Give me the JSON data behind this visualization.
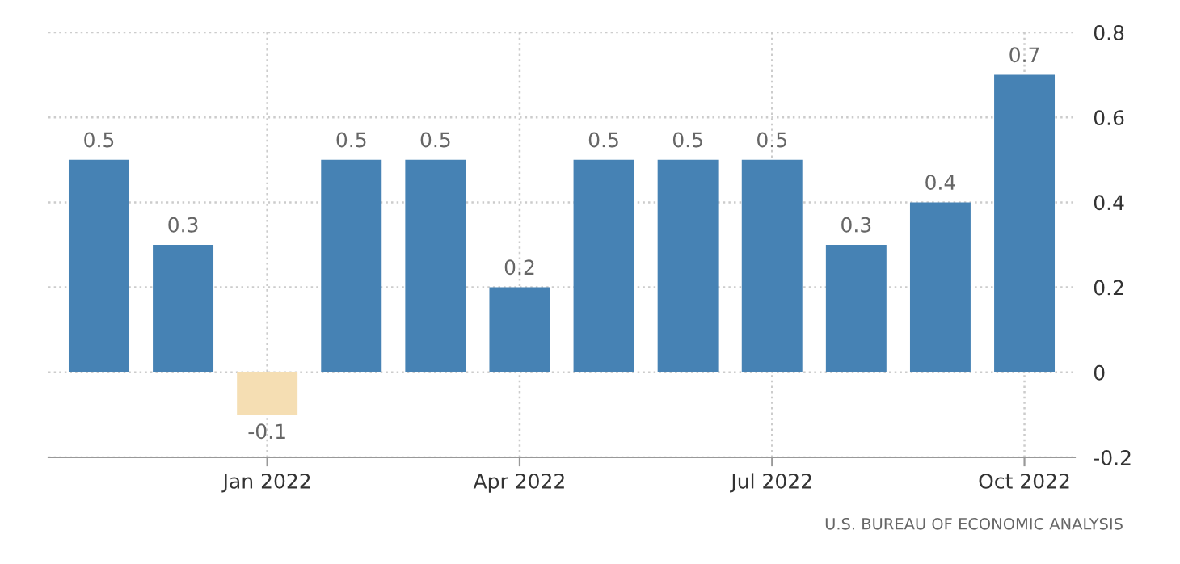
{
  "chart_data": {
    "type": "bar",
    "categories": [
      null,
      null,
      "Jan 2022",
      null,
      null,
      "Apr 2022",
      null,
      null,
      "Jul 2022",
      null,
      null,
      "Oct 2022"
    ],
    "values": [
      0.5,
      0.3,
      -0.1,
      0.5,
      0.5,
      0.2,
      0.5,
      0.5,
      0.5,
      0.3,
      0.4,
      0.7
    ],
    "colors": [
      "#4682b4",
      "#4682b4",
      "#f5deb3",
      "#4682b4",
      "#4682b4",
      "#4682b4",
      "#4682b4",
      "#4682b4",
      "#4682b4",
      "#4682b4",
      "#4682b4",
      "#4682b4"
    ],
    "ylim": [
      -0.2,
      0.8
    ],
    "yticks": [
      -0.2,
      0,
      0.2,
      0.4,
      0.6,
      0.8
    ],
    "grid": true,
    "data_labels": true,
    "annotations": [
      "U.S. BUREAU OF ECONOMIC ANALYSIS"
    ]
  }
}
